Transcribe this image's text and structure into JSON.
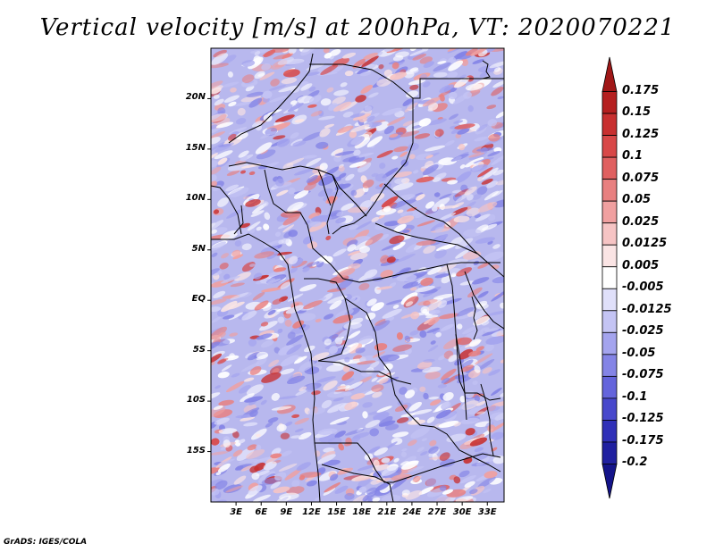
{
  "title": "Vertical velocity [m/s] at 200hPa, VT: 2020070221",
  "credit": "GrADS: IGES/COLA",
  "map": {
    "lat_labels": [
      "20N",
      "15N",
      "10N",
      "5N",
      "EQ",
      "5S",
      "10S",
      "15S"
    ],
    "lat_values": [
      20,
      15,
      10,
      5,
      0,
      -5,
      -10,
      -15
    ],
    "lon_labels": [
      "3E",
      "6E",
      "9E",
      "12E",
      "15E",
      "18E",
      "21E",
      "24E",
      "27E",
      "30E",
      "33E"
    ],
    "lon_values": [
      3,
      6,
      9,
      12,
      15,
      18,
      21,
      24,
      27,
      30,
      33
    ],
    "lat_range": [
      -20,
      25
    ],
    "lon_range": [
      0,
      35
    ]
  },
  "colorbar": {
    "labels": [
      "0.175",
      "0.15",
      "0.125",
      "0.1",
      "0.075",
      "0.05",
      "0.025",
      "0.0125",
      "0.005",
      "-0.005",
      "-0.0125",
      "-0.025",
      "-0.05",
      "-0.075",
      "-0.1",
      "-0.125",
      "-0.175",
      "-0.2"
    ],
    "colors": [
      "#a01818",
      "#b52020",
      "#c83030",
      "#d84848",
      "#e06060",
      "#e88080",
      "#f0a0a0",
      "#f6c4c4",
      "#fae4e4",
      "#ffffff",
      "#e0e0fa",
      "#c4c4f4",
      "#a4a4ee",
      "#8484e6",
      "#6464dc",
      "#4848cc",
      "#3030b8",
      "#2020a0",
      "#14148a"
    ]
  }
}
